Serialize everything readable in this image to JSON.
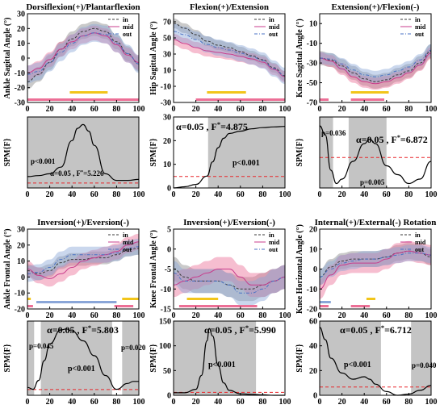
{
  "colors": {
    "in": "#3a3a3a",
    "mid": "#c83c8c",
    "out": "#4a72c4",
    "band_yellow": "#f2c51a",
    "band_blue": "#8aa6d8",
    "band_pink": "#ec6f96",
    "spm_shade": "#c4c4c4",
    "threshold": "#e8262a"
  },
  "chart_data": [
    {
      "type": "line",
      "title": "Dorsiflexion(+)/Plantarflexion",
      "ylabel": "Ankle Sagittal Angle (°)",
      "ylim": [
        -30,
        30
      ],
      "yticks": [
        -30,
        -20,
        -10,
        0,
        10,
        20,
        30
      ],
      "xlim": [
        0,
        100
      ],
      "xticks": [
        0,
        20,
        40,
        60,
        80,
        100
      ],
      "legend": {
        "entries": [
          "in",
          "mid",
          "out"
        ],
        "position": "top-right"
      },
      "x": [
        0,
        10,
        20,
        30,
        40,
        50,
        60,
        70,
        80,
        90,
        100
      ],
      "series": [
        {
          "name": "in",
          "values": [
            -16,
            -11,
            -3,
            6,
            13,
            18,
            20,
            18,
            11,
            3,
            -4
          ],
          "band": 5
        },
        {
          "name": "mid",
          "values": [
            -10,
            -7,
            -1,
            6,
            11,
            15,
            17,
            15,
            9,
            2,
            -3
          ],
          "band": 5
        },
        {
          "name": "out",
          "values": [
            -11,
            -9,
            -3,
            4,
            10,
            15,
            17,
            16,
            10,
            3,
            -4
          ],
          "band": 6
        }
      ],
      "sig_bars": [
        {
          "color": "yellow",
          "from": 38,
          "to": 72
        },
        {
          "color": "pink",
          "from": 0,
          "to": 100
        }
      ]
    },
    {
      "type": "line",
      "title": "Flexion(+)/Extension",
      "ylabel": "Hip Sagittal Angle (°)",
      "ylim": [
        -30,
        80
      ],
      "yticks": [
        -30,
        -10,
        10,
        30,
        50,
        70
      ],
      "xlim": [
        0,
        100
      ],
      "xticks": [
        0,
        20,
        40,
        60,
        80,
        100
      ],
      "legend": {
        "entries": [
          "in",
          "mid",
          "out"
        ],
        "position": "top-right"
      },
      "x": [
        0,
        10,
        20,
        30,
        40,
        50,
        60,
        70,
        80,
        90,
        100
      ],
      "series": [
        {
          "name": "in",
          "values": [
            68,
            62,
            54,
            46,
            41,
            38,
            33,
            28,
            23,
            13,
            3
          ],
          "band": 6
        },
        {
          "name": "mid",
          "values": [
            48,
            43,
            38,
            34,
            32,
            30,
            27,
            24,
            20,
            11,
            2
          ],
          "band": 7
        },
        {
          "name": "out",
          "values": [
            58,
            54,
            48,
            42,
            38,
            35,
            31,
            27,
            22,
            12,
            3
          ],
          "band": 10
        }
      ],
      "sig_bars": [
        {
          "color": "yellow",
          "from": 30,
          "to": 65
        },
        {
          "color": "pink",
          "from": 20,
          "to": 100
        }
      ]
    },
    {
      "type": "line",
      "title": "Extension(+)/Flexion(-)",
      "ylabel": "Knee Sagittal Angle (°)",
      "ylim": [
        -70,
        20
      ],
      "yticks": [
        -70,
        -50,
        -30,
        -10,
        10
      ],
      "xlim": [
        0,
        100
      ],
      "xticks": [
        0,
        20,
        40,
        60,
        80,
        100
      ],
      "legend": {
        "entries": [
          "in",
          "mid",
          "out"
        ],
        "position": "top-right"
      },
      "x": [
        0,
        10,
        20,
        30,
        40,
        50,
        60,
        70,
        80,
        90,
        100
      ],
      "series": [
        {
          "name": "in",
          "values": [
            -25,
            -27,
            -33,
            -40,
            -46,
            -49,
            -47,
            -42,
            -38,
            -30,
            -18
          ],
          "band": 7
        },
        {
          "name": "mid",
          "values": [
            -25,
            -28,
            -36,
            -44,
            -49,
            -51,
            -49,
            -45,
            -40,
            -32,
            -20
          ],
          "band": 6
        },
        {
          "name": "out",
          "values": [
            -25,
            -26,
            -31,
            -37,
            -42,
            -44,
            -42,
            -38,
            -34,
            -27,
            -17
          ],
          "band": 6
        }
      ],
      "sig_bars": [
        {
          "color": "yellow",
          "from": 28,
          "to": 62
        },
        {
          "color": "pink",
          "from": 0,
          "to": 8
        },
        {
          "color": "pink",
          "from": 28,
          "to": 58
        }
      ]
    },
    {
      "type": "line",
      "title": "Inversion(+)/Eversion(-)",
      "ylabel": "Ankle Frontal Angle (°)",
      "ylim": [
        -20,
        30
      ],
      "yticks": [
        -20,
        -10,
        0,
        10,
        20,
        30
      ],
      "xlim": [
        0,
        100
      ],
      "xticks": [
        0,
        20,
        40,
        60,
        80,
        100
      ],
      "legend": {
        "entries": [
          "in",
          "mid",
          "out"
        ],
        "position": "top-right"
      },
      "x": [
        0,
        10,
        20,
        30,
        40,
        50,
        60,
        70,
        80,
        90,
        100
      ],
      "series": [
        {
          "name": "in",
          "values": [
            4,
            2,
            4,
            9,
            11,
            11,
            12,
            12,
            14,
            17,
            18
          ],
          "band": 4
        },
        {
          "name": "mid",
          "values": [
            5,
            1,
            -1,
            2,
            6,
            10,
            12,
            14,
            16,
            20,
            22
          ],
          "band": 5
        },
        {
          "name": "out",
          "values": [
            2,
            3,
            6,
            11,
            14,
            14,
            14,
            14,
            15,
            18,
            19
          ],
          "band": 5
        }
      ],
      "sig_bars": [
        {
          "color": "yellow",
          "from": 0,
          "to": 3
        },
        {
          "color": "yellow",
          "from": 85,
          "to": 100
        },
        {
          "color": "blue",
          "from": 8,
          "to": 80
        },
        {
          "color": "pink",
          "from": 0,
          "to": 5
        },
        {
          "color": "pink",
          "from": 78,
          "to": 95
        }
      ]
    },
    {
      "type": "line",
      "title": "Inversion(+)/Eversion(-)",
      "ylabel": "Knee Frontal Angle (°)",
      "ylim": [
        -15,
        5
      ],
      "yticks": [
        -15,
        -10,
        -5,
        0,
        5
      ],
      "xlim": [
        0,
        100
      ],
      "xticks": [
        0,
        20,
        40,
        60,
        80,
        100
      ],
      "legend": {
        "entries": [
          "in",
          "mid",
          "out"
        ],
        "position": "top-right"
      },
      "x": [
        0,
        10,
        20,
        30,
        40,
        50,
        60,
        70,
        80,
        90,
        100
      ],
      "series": [
        {
          "name": "in",
          "values": [
            -5,
            -7,
            -8,
            -8,
            -8,
            -9,
            -10,
            -10,
            -9,
            -8,
            -7
          ],
          "band": 3
        },
        {
          "name": "mid",
          "values": [
            -9,
            -8,
            -7,
            -6,
            -5,
            -5,
            -7,
            -9,
            -9,
            -8,
            -7
          ],
          "band": 3
        },
        {
          "name": "out",
          "values": [
            -6,
            -8,
            -8,
            -8,
            -8,
            -9,
            -11,
            -11,
            -10,
            -8,
            -7
          ],
          "band": 3
        }
      ],
      "sig_bars": [
        {
          "color": "yellow",
          "from": 12,
          "to": 40
        },
        {
          "color": "pink",
          "from": 5,
          "to": 75
        }
      ]
    },
    {
      "type": "line",
      "title": "Internal(+)/External(-) Rotation",
      "ylabel": "Knee Horizontal Angle (°)",
      "ylim": [
        -20,
        20
      ],
      "yticks": [
        -20,
        -10,
        0,
        10,
        20
      ],
      "xlim": [
        0,
        100
      ],
      "xticks": [
        0,
        20,
        40,
        60,
        80,
        100
      ],
      "legend": {
        "entries": [
          "in",
          "mid",
          "out"
        ],
        "position": "top-right"
      },
      "x": [
        0,
        10,
        20,
        30,
        40,
        50,
        60,
        70,
        80,
        90,
        100
      ],
      "series": [
        {
          "name": "in",
          "values": [
            -4,
            1,
            4,
            5,
            5,
            5,
            6,
            8,
            9,
            8,
            6
          ],
          "band": 4
        },
        {
          "name": "mid",
          "values": [
            -10,
            -3,
            2,
            3,
            3,
            3,
            5,
            8,
            9,
            8,
            7
          ],
          "band": 5
        },
        {
          "name": "out",
          "values": [
            -4,
            0,
            3,
            4,
            5,
            5,
            6,
            7,
            8,
            8,
            7
          ],
          "band": 4
        }
      ],
      "sig_bars": [
        {
          "color": "yellow",
          "from": 42,
          "to": 50
        },
        {
          "color": "blue",
          "from": 0,
          "to": 10
        },
        {
          "color": "pink",
          "from": 0,
          "to": 8
        },
        {
          "color": "pink",
          "from": 28,
          "to": 45
        }
      ]
    },
    {
      "type": "line",
      "ylabel": "SPM{F}",
      "xlim": [
        0,
        100
      ],
      "xticks": [
        0,
        20,
        40,
        60,
        80,
        100
      ],
      "yticks": [],
      "x": [
        0,
        10,
        20,
        30,
        40,
        45,
        50,
        55,
        60,
        70,
        80,
        90,
        100
      ],
      "values": [
        12,
        13,
        15,
        22,
        50,
        63,
        67,
        60,
        45,
        15,
        8,
        8,
        9
      ],
      "ymax": 75,
      "threshold": 5.226,
      "shaded": [
        [
          0,
          100
        ]
      ],
      "annotations": [
        "p<0.001",
        "α=0.05 , F",
        "*",
        "=5.226"
      ]
    },
    {
      "type": "line",
      "ylabel": "SPM{F}",
      "ylim": [
        0,
        30
      ],
      "yticks": [
        0,
        10,
        20,
        30
      ],
      "xlim": [
        0,
        100
      ],
      "xticks": [
        0,
        20,
        40,
        60,
        80,
        100
      ],
      "x": [
        0,
        10,
        20,
        30,
        35,
        40,
        45,
        50,
        60,
        70,
        80,
        90,
        100
      ],
      "values": [
        0,
        0.5,
        1.5,
        5,
        11,
        17,
        21,
        23,
        24,
        25,
        25.5,
        25.8,
        26
      ],
      "threshold": 4.875,
      "shaded": [
        [
          31,
          100
        ]
      ],
      "annotations": [
        "α=0.05 , F",
        "*",
        "=4.875",
        "p<0.001"
      ]
    },
    {
      "type": "line",
      "ylabel": "SPM{F}",
      "xlim": [
        0,
        100
      ],
      "xticks": [
        0,
        20,
        40,
        60,
        80,
        100
      ],
      "yticks": [],
      "x": [
        0,
        5,
        10,
        15,
        20,
        30,
        40,
        45,
        50,
        60,
        70,
        80,
        90,
        100
      ],
      "values": [
        14,
        12,
        4,
        1,
        2,
        6,
        10,
        11,
        10,
        5,
        3,
        1,
        2,
        6
      ],
      "ymax": 16,
      "threshold": 6.872,
      "shaded": [
        [
          0,
          12
        ],
        [
          26,
          60
        ]
      ],
      "annotations": [
        "p=0.036",
        "α=0.05 , F",
        "*",
        "=6.872",
        "p=0.005"
      ]
    },
    {
      "type": "line",
      "ylabel": "SPM{F}",
      "xlim": [
        0,
        100
      ],
      "xticks": [
        0,
        20,
        40,
        60,
        80,
        100
      ],
      "yticks": [],
      "x": [
        0,
        5,
        10,
        15,
        20,
        30,
        35,
        40,
        50,
        60,
        70,
        80,
        90,
        95,
        100
      ],
      "values": [
        8,
        6,
        15,
        35,
        52,
        66,
        67,
        65,
        55,
        40,
        20,
        6,
        12,
        14,
        14
      ],
      "ymax": 75,
      "threshold": 5.803,
      "shaded": [
        [
          0,
          6
        ],
        [
          12,
          76
        ],
        [
          85,
          100
        ]
      ],
      "annotations": [
        "α=0.05 , F",
        "*",
        "=5.803",
        "p=0.045",
        "p=0.020",
        "p<0.001"
      ]
    },
    {
      "type": "line",
      "ylabel": "SPM{F}",
      "ylim": [
        0,
        150
      ],
      "yticks": [
        0,
        50,
        100,
        150
      ],
      "xlim": [
        0,
        100
      ],
      "xticks": [
        0,
        20,
        40,
        60,
        80,
        100
      ],
      "x": [
        0,
        10,
        20,
        25,
        30,
        32,
        35,
        40,
        45,
        50,
        60,
        70,
        80,
        90,
        100
      ],
      "values": [
        5,
        5,
        12,
        40,
        110,
        135,
        120,
        60,
        25,
        10,
        3,
        2,
        1,
        0,
        0
      ],
      "threshold": 5.99,
      "shaded": [
        [
          0,
          74
        ]
      ],
      "annotations": [
        "α=0.05 , F",
        "*",
        "=5.990",
        "p<0.001"
      ]
    },
    {
      "type": "line",
      "ylabel": "SPM{F}",
      "ylim": [
        0,
        60
      ],
      "yticks": [
        0,
        20,
        40,
        60
      ],
      "xlim": [
        0,
        100
      ],
      "xticks": [
        0,
        20,
        40,
        60,
        80,
        100
      ],
      "x": [
        0,
        5,
        10,
        20,
        30,
        40,
        45,
        50,
        60,
        70,
        80,
        90,
        100
      ],
      "values": [
        55,
        45,
        30,
        18,
        13,
        15,
        13,
        9,
        3,
        0,
        1,
        4,
        8
      ],
      "threshold": 6.712,
      "shaded": [
        [
          0,
          55
        ],
        [
          82,
          100
        ]
      ],
      "annotations": [
        "α=0.05 , F",
        "*",
        "=6.712",
        "p<0.001",
        "p=0.040"
      ]
    }
  ]
}
